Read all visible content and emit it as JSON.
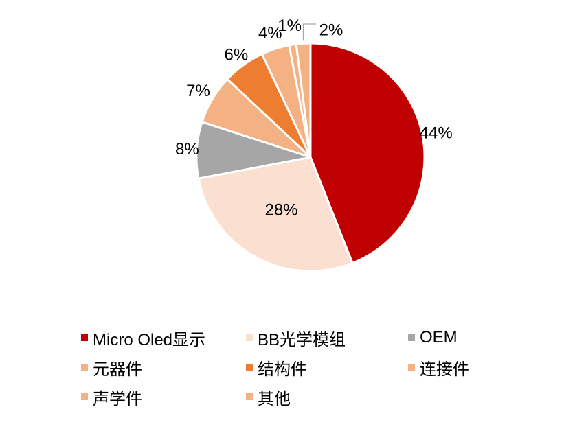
{
  "chart_data": {
    "type": "pie",
    "categories": [
      "Micro Oled显示",
      "BB光学模组",
      "OEM",
      "元器件",
      "结构件",
      "连接件",
      "声学件",
      "其他"
    ],
    "values": [
      44,
      28,
      8,
      7,
      6,
      4,
      1,
      2
    ],
    "labels": [
      "44%",
      "28%",
      "8%",
      "7%",
      "6%",
      "4%",
      "1%",
      "2%"
    ],
    "colors": [
      "#c00000",
      "#fbe0d2",
      "#a6a6a6",
      "#f4b183",
      "#ed7d31",
      "#f4b183",
      "#f4b183",
      "#f4b183"
    ],
    "start_angle": "12 o'clock",
    "direction": "clockwise",
    "legend_position": "bottom"
  }
}
